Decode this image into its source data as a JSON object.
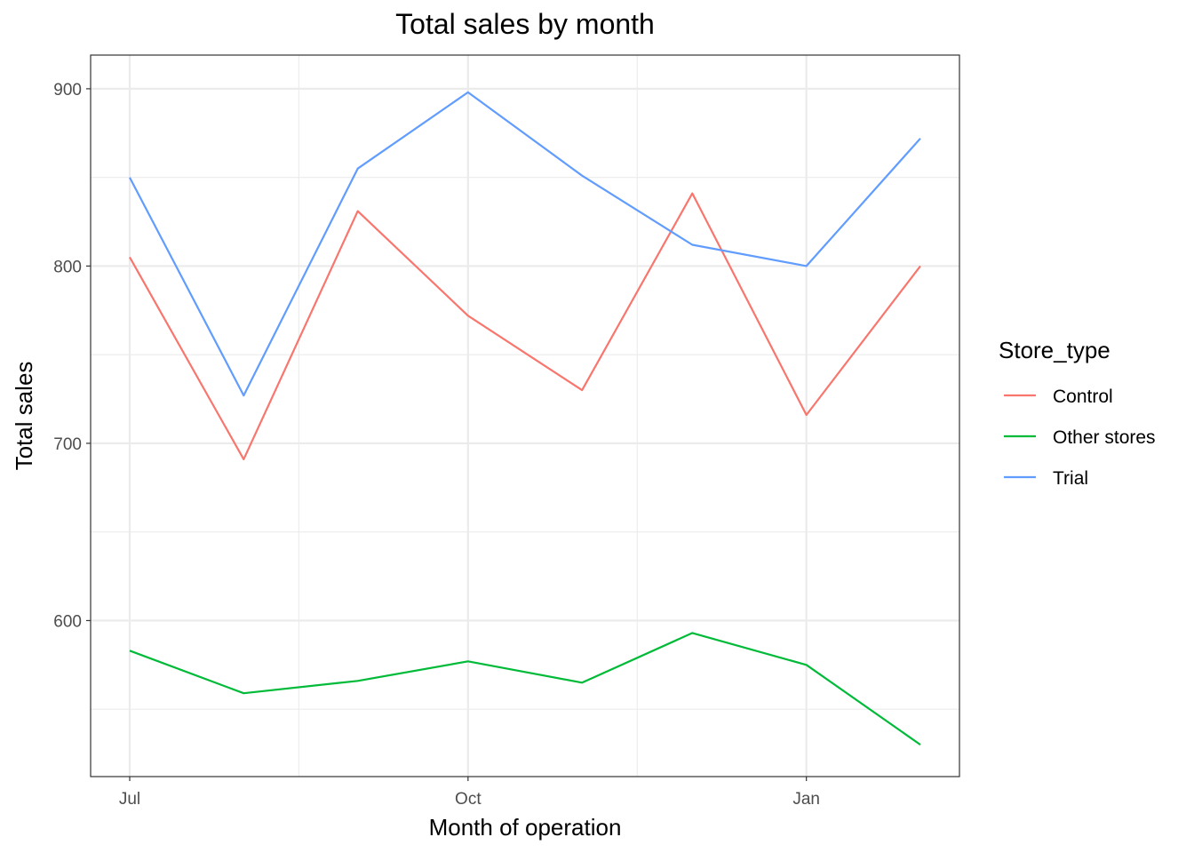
{
  "chart_data": {
    "type": "line",
    "title": "Total sales by month",
    "xlabel": "Month of operation",
    "ylabel": "Total sales",
    "x": [
      "2018-07",
      "2018-08",
      "2018-09",
      "2018-10",
      "2018-11",
      "2018-12",
      "2019-01",
      "2019-02"
    ],
    "x_ticks": [
      {
        "x": "2018-07",
        "label": "Jul"
      },
      {
        "x": "2018-10",
        "label": "Oct"
      },
      {
        "x": "2019-01",
        "label": "Jan"
      }
    ],
    "x_minor_ticks": [
      "2018-08-16",
      "2018-11-16"
    ],
    "y_ticks": [
      600,
      700,
      800,
      900
    ],
    "y_minor_ticks": [
      550,
      650,
      750,
      850
    ],
    "ylim": [
      512,
      919
    ],
    "grid": true,
    "legend": {
      "title": "Store_type",
      "position": "right"
    },
    "series": [
      {
        "name": "Control",
        "color": "#F8766D",
        "values": [
          805,
          691,
          831,
          772,
          730,
          841,
          716,
          800
        ]
      },
      {
        "name": "Other stores",
        "color": "#00BA38",
        "values": [
          583,
          559,
          566,
          577,
          565,
          593,
          575,
          530
        ]
      },
      {
        "name": "Trial",
        "color": "#619CFF",
        "values": [
          850,
          727,
          855,
          898,
          851,
          812,
          800,
          872
        ]
      }
    ]
  }
}
